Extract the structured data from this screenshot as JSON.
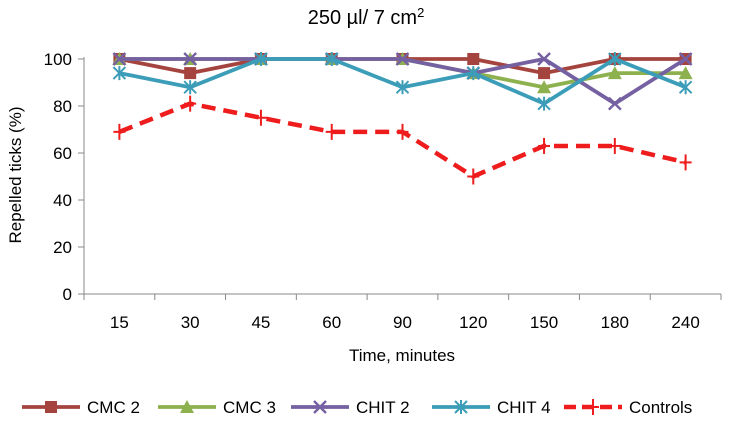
{
  "chart_data": {
    "type": "line",
    "title": "250 µl/ 7 cm",
    "title_superscript": "2",
    "xlabel": "Time, minutes",
    "ylabel": "Repelled ticks (%)",
    "categories": [
      "15",
      "30",
      "45",
      "60",
      "90",
      "120",
      "150",
      "180",
      "240"
    ],
    "ylim": [
      0,
      100
    ],
    "yticks": [
      0,
      20,
      40,
      60,
      80,
      100
    ],
    "grid": false,
    "legend_position": "bottom",
    "series": [
      {
        "name": "CMC 2",
        "marker": "square",
        "dashed": false,
        "color": "#a5443f",
        "values": [
          100,
          94,
          100,
          100,
          100,
          100,
          94,
          100,
          100
        ]
      },
      {
        "name": "CMC 3",
        "marker": "triangle",
        "dashed": false,
        "color": "#8eb14f",
        "values": [
          100,
          100,
          100,
          100,
          100,
          94,
          88,
          94,
          94
        ]
      },
      {
        "name": "CHIT 2",
        "marker": "x",
        "dashed": false,
        "color": "#7560a2",
        "values": [
          100,
          100,
          100,
          100,
          100,
          94,
          100,
          81,
          100
        ]
      },
      {
        "name": "CHIT 4",
        "marker": "star",
        "dashed": false,
        "color": "#3c9db8",
        "values": [
          94,
          88,
          100,
          100,
          88,
          94,
          81,
          100,
          88
        ]
      },
      {
        "name": "Controls",
        "marker": "plus",
        "dashed": true,
        "color": "#ee1c1c",
        "values": [
          69,
          81,
          75,
          69,
          69,
          50,
          63,
          63,
          56
        ]
      }
    ]
  }
}
